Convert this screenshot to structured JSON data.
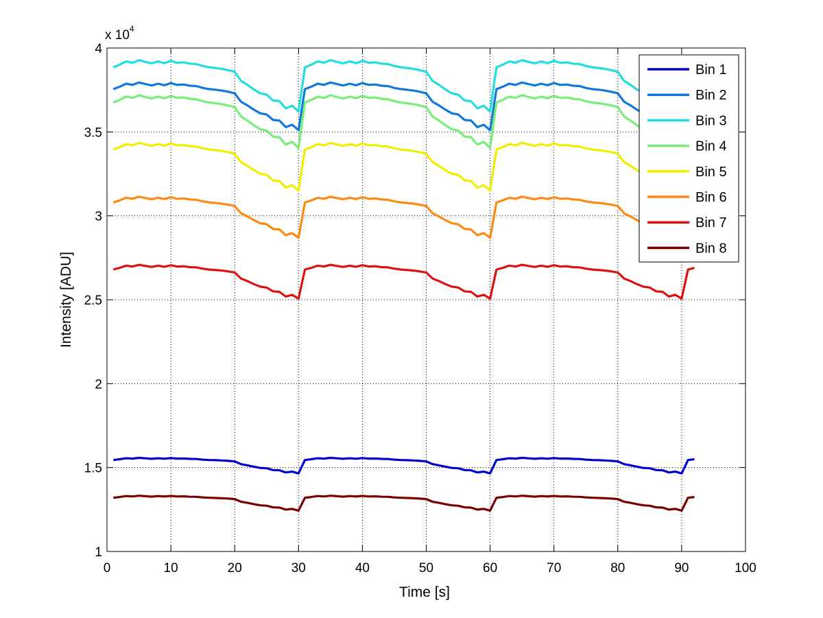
{
  "chart_data": {
    "type": "line",
    "title": "",
    "xlabel": "Time [s]",
    "ylabel": "Intensity [ADU]",
    "exponent_base": "x 10",
    "exponent_power": "4",
    "xlim": [
      0,
      100
    ],
    "ylim": [
      1,
      4
    ],
    "y_scale": 10000,
    "xticks": [
      0,
      10,
      20,
      30,
      40,
      50,
      60,
      70,
      80,
      90,
      100
    ],
    "xtick_labels": [
      "0",
      "10",
      "20",
      "30",
      "40",
      "50",
      "60",
      "70",
      "80",
      "90",
      "100"
    ],
    "yticks": [
      1,
      1.5,
      2,
      2.5,
      3,
      3.5,
      4
    ],
    "ytick_labels": [
      "1",
      "1.5",
      "2",
      "2.5",
      "3",
      "3.5",
      "4"
    ],
    "grid": true,
    "legend_position": "top-right",
    "period_s": 30,
    "x": [
      1,
      2,
      3,
      4,
      5,
      6,
      7,
      8,
      9,
      10,
      11,
      12,
      13,
      14,
      15,
      16,
      17,
      18,
      19,
      20,
      21,
      22,
      23,
      24,
      25,
      26,
      27,
      28,
      29,
      30,
      31,
      32,
      33,
      34,
      35,
      36,
      37,
      38,
      39,
      40,
      41,
      42,
      43,
      44,
      45,
      46,
      47,
      48,
      49,
      50,
      51,
      52,
      53,
      54,
      55,
      56,
      57,
      58,
      59,
      60,
      61,
      62,
      63,
      64,
      65,
      66,
      67,
      68,
      69,
      70,
      71,
      72,
      73,
      74,
      75,
      76,
      77,
      78,
      79,
      80,
      81,
      82,
      83,
      84,
      85,
      86,
      87,
      88,
      89,
      90,
      91,
      92
    ],
    "cycle_shape": [
      0.0,
      0.2,
      0.45,
      0.35,
      0.55,
      0.42,
      0.3,
      0.45,
      0.32,
      0.5,
      0.35,
      0.38,
      0.28,
      0.25,
      0.1,
      0.0,
      -0.05,
      -0.12,
      -0.22,
      -0.35,
      -1.05,
      -1.35,
      -1.7,
      -2.0,
      -2.1,
      -2.55,
      -2.6,
      -3.15,
      -2.95,
      -3.4
    ],
    "series": [
      {
        "name": "Bin 1",
        "color": "#0000cc",
        "base": 1.545,
        "amp": 0.0235,
        "show": [
          1,
          92
        ]
      },
      {
        "name": "Bin 2",
        "color": "#1177dd",
        "base": 3.755,
        "amp": 0.072,
        "show": [
          1,
          84
        ]
      },
      {
        "name": "Bin 3",
        "color": "#22dddd",
        "base": 3.885,
        "amp": 0.0775,
        "show": [
          1,
          84
        ]
      },
      {
        "name": "Bin 4",
        "color": "#77ee77",
        "base": 3.675,
        "amp": 0.0795,
        "show": [
          1,
          84
        ]
      },
      {
        "name": "Bin 5",
        "color": "#eeee00",
        "base": 3.395,
        "amp": 0.072,
        "show": [
          1,
          84
        ]
      },
      {
        "name": "Bin 6",
        "color": "#ff8811",
        "base": 3.08,
        "amp": 0.062,
        "show": [
          1,
          84
        ]
      },
      {
        "name": "Bin 7",
        "color": "#dd1111",
        "base": 2.68,
        "amp": 0.051,
        "show": [
          1,
          92
        ]
      },
      {
        "name": "Bin 8",
        "color": "#770000",
        "base": 1.32,
        "amp": 0.0225,
        "show": [
          1,
          92
        ]
      }
    ]
  }
}
